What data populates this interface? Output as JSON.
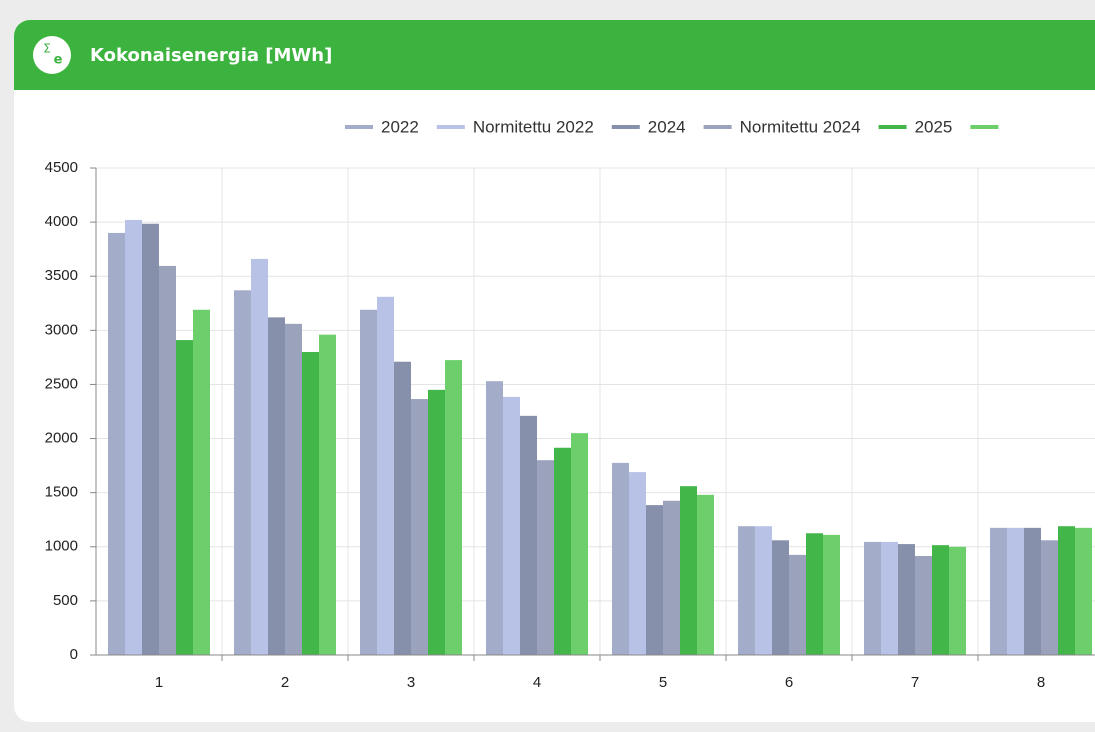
{
  "header": {
    "icon_symbol": "Σ",
    "icon_subscript": "e",
    "title": "Kokonaisenergia [MWh]"
  },
  "chart_data": {
    "type": "bar",
    "categories": [
      "1",
      "2",
      "3",
      "4",
      "5",
      "6",
      "7",
      "8"
    ],
    "series": [
      {
        "name": "2022",
        "color": "#a3acc8",
        "values": [
          3900,
          3370,
          3190,
          2530,
          1775,
          1190,
          1045,
          1175
        ]
      },
      {
        "name": "Normitettu 2022",
        "color": "#b8c2e6",
        "values": [
          4020,
          3660,
          3310,
          2385,
          1690,
          1190,
          1045,
          1175
        ]
      },
      {
        "name": "2024",
        "color": "#8790aa",
        "values": [
          3985,
          3120,
          2710,
          2210,
          1385,
          1060,
          1025,
          1175
        ]
      },
      {
        "name": "Normitettu 2024",
        "color": "#9aa2bc",
        "values": [
          3595,
          3060,
          2365,
          1800,
          1425,
          925,
          915,
          1060
        ]
      },
      {
        "name": "2025",
        "color": "#43b649",
        "values": [
          2910,
          2800,
          2450,
          1915,
          1560,
          1125,
          1015,
          1190
        ]
      },
      {
        "color": "#6ccf6c",
        "values": [
          3190,
          2960,
          2725,
          2050,
          1480,
          1110,
          1000,
          1175
        ]
      }
    ],
    "ylim": [
      0,
      4500
    ],
    "yticks": [
      0,
      500,
      1000,
      1500,
      2000,
      2500,
      3000,
      3500,
      4000,
      4500
    ],
    "grid": true
  }
}
